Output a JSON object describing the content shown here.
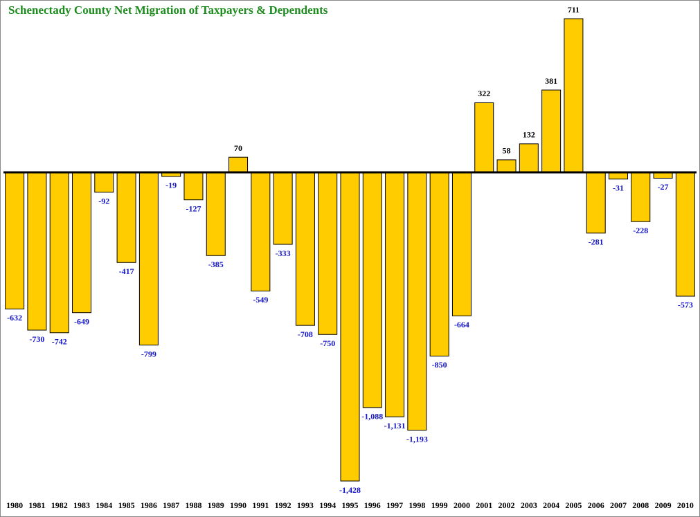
{
  "chart_data": {
    "type": "bar",
    "title": "Schenectady County Net Migration of Taxpayers & Dependents",
    "categories": [
      "1980",
      "1981",
      "1982",
      "1983",
      "1984",
      "1985",
      "1986",
      "1987",
      "1988",
      "1989",
      "1990",
      "1991",
      "1992",
      "1993",
      "1994",
      "1995",
      "1996",
      "1997",
      "1998",
      "1999",
      "2000",
      "2001",
      "2002",
      "2003",
      "2004",
      "2005",
      "2006",
      "2007",
      "2008",
      "2009",
      "2010"
    ],
    "values": [
      -632,
      -730,
      -742,
      -649,
      -92,
      -417,
      -799,
      -19,
      -127,
      -385,
      70,
      -549,
      -333,
      -708,
      -750,
      -1428,
      -1088,
      -1131,
      -1193,
      -850,
      -664,
      322,
      58,
      132,
      381,
      711,
      -281,
      -31,
      -228,
      -27,
      -573
    ],
    "value_labels": [
      "-632",
      "-730",
      "-742",
      "-649",
      "-92",
      "-417",
      "-799",
      "-19",
      "-127",
      "-385",
      "70",
      "-549",
      "-333",
      "-708",
      "-750",
      "-1,428",
      "-1,088",
      "-1,131",
      "-1,193",
      "-850",
      "-664",
      "322",
      "58",
      "132",
      "381",
      "711",
      "-281",
      "-31",
      "-228",
      "-27",
      "-573"
    ],
    "color": "#ffcc00"
  }
}
